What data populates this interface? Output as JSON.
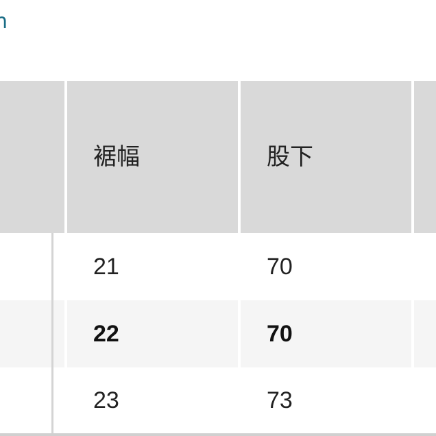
{
  "link_text": "n",
  "table": {
    "headers": [
      "",
      "裾幅",
      "股下",
      ""
    ],
    "rows": [
      {
        "values": [
          "",
          "21",
          "70",
          ""
        ],
        "highlighted": false
      },
      {
        "values": [
          "",
          "22",
          "70",
          ""
        ],
        "highlighted": true
      },
      {
        "values": [
          "",
          "23",
          "73",
          ""
        ],
        "highlighted": false
      }
    ]
  },
  "colors": {
    "header_bg": "#d9d9d9",
    "highlight_bg": "#f5f5f5",
    "link": "#1a6d86"
  }
}
